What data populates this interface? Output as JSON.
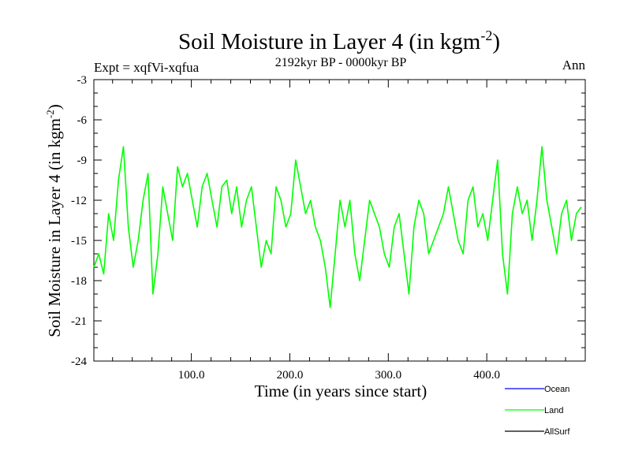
{
  "chart_data": {
    "type": "line",
    "title": "Soil Moisture in Layer 4 (in kgm",
    "title_superscript": "-2",
    "title_suffix": ")",
    "subtitle": "2192kyr BP - 0000kyr BP",
    "experiment_label": "Expt = xqfVi-xqfua",
    "season_label": "Ann",
    "xlabel": "Time (in years since start)",
    "ylabel": "Soil Moisture in Layer 4 (in kgm",
    "ylabel_superscript": "-2",
    "ylabel_suffix": ")",
    "xlim": [
      1,
      500
    ],
    "ylim": [
      -24,
      -3
    ],
    "x_ticks": [
      100,
      200,
      300,
      400
    ],
    "x_tick_labels": [
      "100.0",
      "200.0",
      "300.0",
      "400.0"
    ],
    "y_ticks": [
      -3,
      -6,
      -9,
      -12,
      -15,
      -18,
      -21,
      -24
    ],
    "y_tick_labels": [
      "-3",
      "-6",
      "-9",
      "-12",
      "-15",
      "-18",
      "-21",
      "-24"
    ],
    "legend": [
      {
        "name": "Ocean",
        "color": "#0000ff"
      },
      {
        "name": "Land",
        "color": "#00ff00"
      },
      {
        "name": "AllSurf",
        "color": "#000000"
      }
    ],
    "series": [
      {
        "name": "Land",
        "color": "#00ff00",
        "x_start": 1,
        "x_step": 5,
        "values": [
          -17,
          -16,
          -17.5,
          -13,
          -15,
          -10.5,
          -8,
          -14,
          -17,
          -15,
          -12,
          -10,
          -19,
          -16,
          -11,
          -13,
          -15,
          -9.5,
          -11,
          -10,
          -12,
          -14,
          -11,
          -10,
          -12,
          -14,
          -11,
          -10.5,
          -13,
          -11,
          -14,
          -12,
          -11,
          -14,
          -17,
          -15,
          -16,
          -11,
          -12,
          -14,
          -13,
          -9,
          -11,
          -13,
          -12,
          -14,
          -15,
          -17,
          -20,
          -16,
          -12,
          -14,
          -12,
          -16,
          -18,
          -15,
          -12,
          -13,
          -14,
          -16,
          -17,
          -14,
          -13,
          -16,
          -19,
          -14,
          -12,
          -13,
          -16,
          -15,
          -14,
          -13,
          -11,
          -13,
          -15,
          -16,
          -12,
          -11,
          -14,
          -13,
          -15,
          -12,
          -9,
          -16,
          -19,
          -13,
          -11,
          -13,
          -12,
          -15,
          -12,
          -8,
          -12,
          -14,
          -16,
          -13,
          -12,
          -15,
          -13,
          -12.5
        ]
      }
    ]
  }
}
